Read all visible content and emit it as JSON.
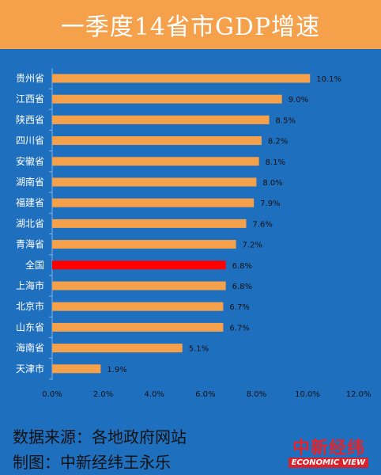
{
  "header": {
    "title": "一季度14省市GDP增速"
  },
  "chart_data": {
    "type": "bar",
    "orientation": "horizontal",
    "categories": [
      "贵州省",
      "江西省",
      "陕西省",
      "四川省",
      "安徽省",
      "湖南省",
      "福建省",
      "湖北省",
      "青海省",
      "全国",
      "上海市",
      "北京市",
      "山东省",
      "海南省",
      "天津市"
    ],
    "values": [
      10.1,
      9.0,
      8.5,
      8.2,
      8.1,
      8.0,
      7.9,
      7.6,
      7.2,
      6.8,
      6.8,
      6.7,
      6.7,
      5.1,
      1.9
    ],
    "value_labels": [
      "10.1%",
      "9.0%",
      "8.5%",
      "8.2%",
      "8.1%",
      "8.0%",
      "7.9%",
      "7.6%",
      "7.2%",
      "6.8%",
      "6.8%",
      "6.7%",
      "6.7%",
      "5.1%",
      "1.9%"
    ],
    "xlim": [
      0,
      12
    ],
    "x_ticks": [
      "0.0%",
      "2.0%",
      "4.0%",
      "6.0%",
      "8.0%",
      "10.0%",
      "12.0%"
    ],
    "highlight_category": "全国",
    "colors": {
      "bar": "#f5a04a",
      "highlight": "#ff0000",
      "plot_background": "#1f6fbf"
    },
    "grid": false,
    "legend": "none"
  },
  "footer": {
    "source": "数据来源：各地政府网站",
    "credit": "制图：中新经纬王永乐",
    "logo_cn": "中新经纬",
    "logo_en": "ECONOMIC VIEW"
  }
}
